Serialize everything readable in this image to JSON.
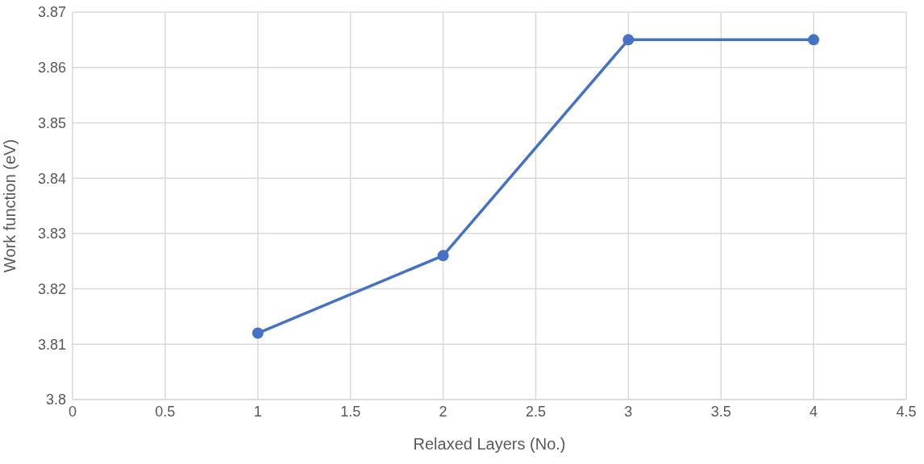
{
  "chart_data": {
    "type": "line",
    "xlabel": "Relaxed Layers (No.)",
    "ylabel": "Work function (eV)",
    "x": [
      1,
      2,
      3,
      4
    ],
    "series": [
      {
        "color": "#4472c4",
        "values": [
          3.812,
          3.826,
          3.865,
          3.865
        ]
      }
    ],
    "xlim": [
      0,
      4.5
    ],
    "xticks": [
      0,
      0.5,
      1,
      1.5,
      2,
      2.5,
      3,
      3.5,
      4,
      4.5
    ],
    "ylim": [
      3.8,
      3.87
    ],
    "yticks": [
      3.8,
      3.81,
      3.82,
      3.83,
      3.84,
      3.85,
      3.86,
      3.87
    ],
    "grid": true,
    "marker": "circle",
    "line_style": "solid"
  }
}
